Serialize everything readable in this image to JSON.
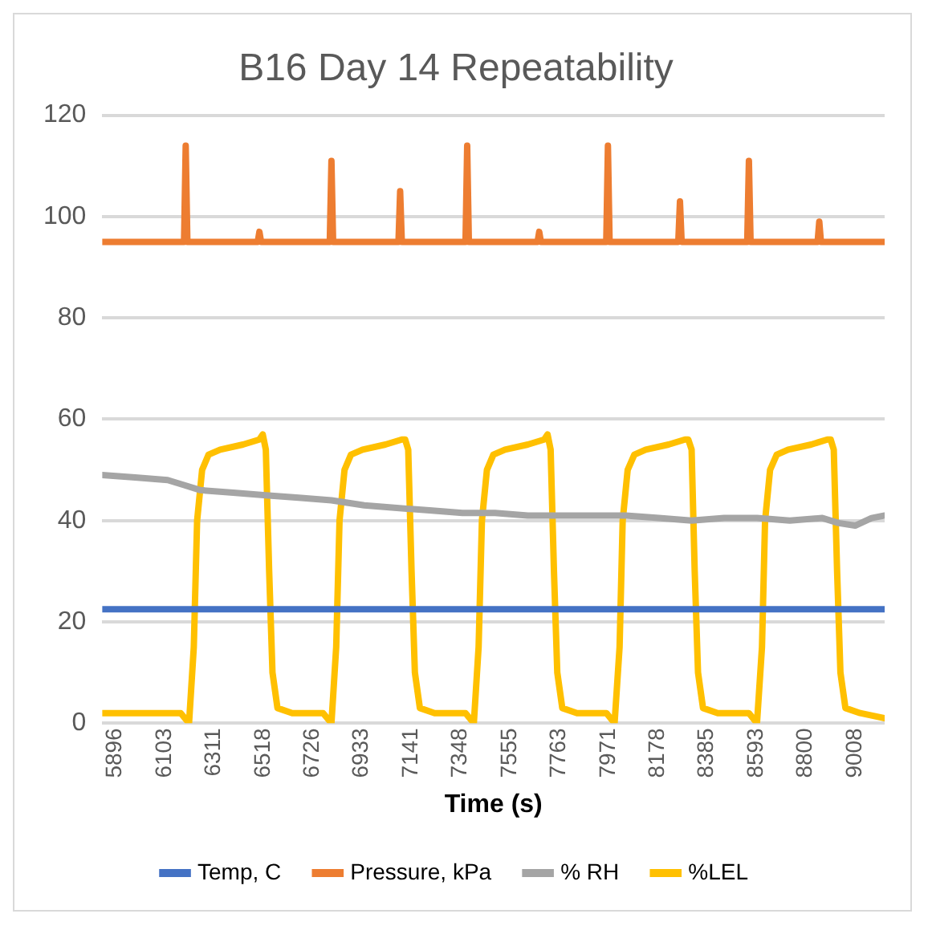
{
  "chart_data": {
    "type": "line",
    "title": "B16 Day 14 Repeatability",
    "xlabel": "Time (s)",
    "xlim": [
      5841,
      9132
    ],
    "xticks": [
      5896,
      6103,
      6311,
      6518,
      6726,
      6933,
      7141,
      7348,
      7555,
      7763,
      7971,
      8178,
      8385,
      8593,
      8800,
      9008
    ],
    "ylim": [
      0,
      120
    ],
    "yticks": [
      0,
      20,
      40,
      60,
      80,
      100,
      120
    ],
    "grid": "y",
    "legend": "bottom",
    "marker": "none",
    "line_style": "solid",
    "series": [
      {
        "name": "Temp, C",
        "color": "#4472c4",
        "x": [
          5841,
          9132
        ],
        "values": [
          22.5,
          22.5
        ]
      },
      {
        "name": "Pressure, kPa",
        "color": "#ed7d31",
        "x": [
          5841,
          6185,
          6192,
          6199,
          6495,
          6502,
          6509,
          6798,
          6805,
          6812,
          7087,
          7094,
          7101,
          7369,
          7376,
          7383,
          7672,
          7679,
          7686,
          7961,
          7968,
          7975,
          8264,
          8271,
          8278,
          8554,
          8561,
          8568,
          8850,
          8857,
          8864,
          9132
        ],
        "values": [
          95,
          95,
          114,
          95,
          95,
          97,
          95,
          95,
          111,
          95,
          95,
          105,
          95,
          95,
          114,
          95,
          95,
          97,
          95,
          95,
          114,
          95,
          95,
          103,
          95,
          95,
          111,
          95,
          95,
          99,
          95,
          95
        ]
      },
      {
        "name": "% RH",
        "color": "#a5a5a5",
        "x": [
          5841,
          5979,
          6116,
          6185,
          6254,
          6392,
          6529,
          6667,
          6805,
          6943,
          7080,
          7218,
          7356,
          7493,
          7631,
          7769,
          7906,
          8044,
          8182,
          8320,
          8457,
          8595,
          8733,
          8870,
          8939,
          9008,
          9077,
          9132
        ],
        "values": [
          49,
          48.5,
          48,
          47,
          46,
          45.5,
          45,
          44.5,
          44,
          43,
          42.5,
          42,
          41.5,
          41.5,
          41,
          41,
          41,
          41,
          40.5,
          40,
          40.5,
          40.5,
          40,
          40.5,
          39.5,
          39,
          40.5,
          41
        ]
      },
      {
        "name": "%LEL",
        "color": "#ffc000",
        "x": [
          5841,
          6116,
          6171,
          6206,
          6226,
          6240,
          6261,
          6288,
          6337,
          6433,
          6502,
          6516,
          6529,
          6543,
          6557,
          6578,
          6640,
          6770,
          6805,
          6825,
          6839,
          6860,
          6887,
          6936,
          7032,
          7101,
          7115,
          7128,
          7142,
          7156,
          7177,
          7239,
          7369,
          7404,
          7424,
          7438,
          7459,
          7486,
          7535,
          7631,
          7700,
          7714,
          7727,
          7741,
          7755,
          7776,
          7838,
          7962,
          7996,
          8017,
          8030,
          8051,
          8079,
          8127,
          8223,
          8292,
          8306,
          8320,
          8333,
          8347,
          8368,
          8430,
          8561,
          8595,
          8616,
          8629,
          8650,
          8678,
          8726,
          8823,
          8891,
          8905,
          8918,
          8932,
          8946,
          8967,
          9029,
          9132
        ],
        "values": [
          2,
          2,
          2,
          0,
          15,
          40,
          50,
          53,
          54,
          55,
          56,
          57,
          54,
          30,
          10,
          3,
          2,
          2,
          0,
          15,
          40,
          50,
          53,
          54,
          55,
          56,
          56,
          54,
          30,
          10,
          3,
          2,
          2,
          0,
          15,
          40,
          50,
          53,
          54,
          55,
          56,
          57,
          54,
          30,
          10,
          3,
          2,
          2,
          0,
          15,
          40,
          50,
          53,
          54,
          55,
          56,
          56,
          54,
          30,
          10,
          3,
          2,
          2,
          0,
          15,
          40,
          50,
          53,
          54,
          55,
          56,
          56,
          54,
          30,
          10,
          3,
          2,
          1
        ]
      }
    ]
  }
}
